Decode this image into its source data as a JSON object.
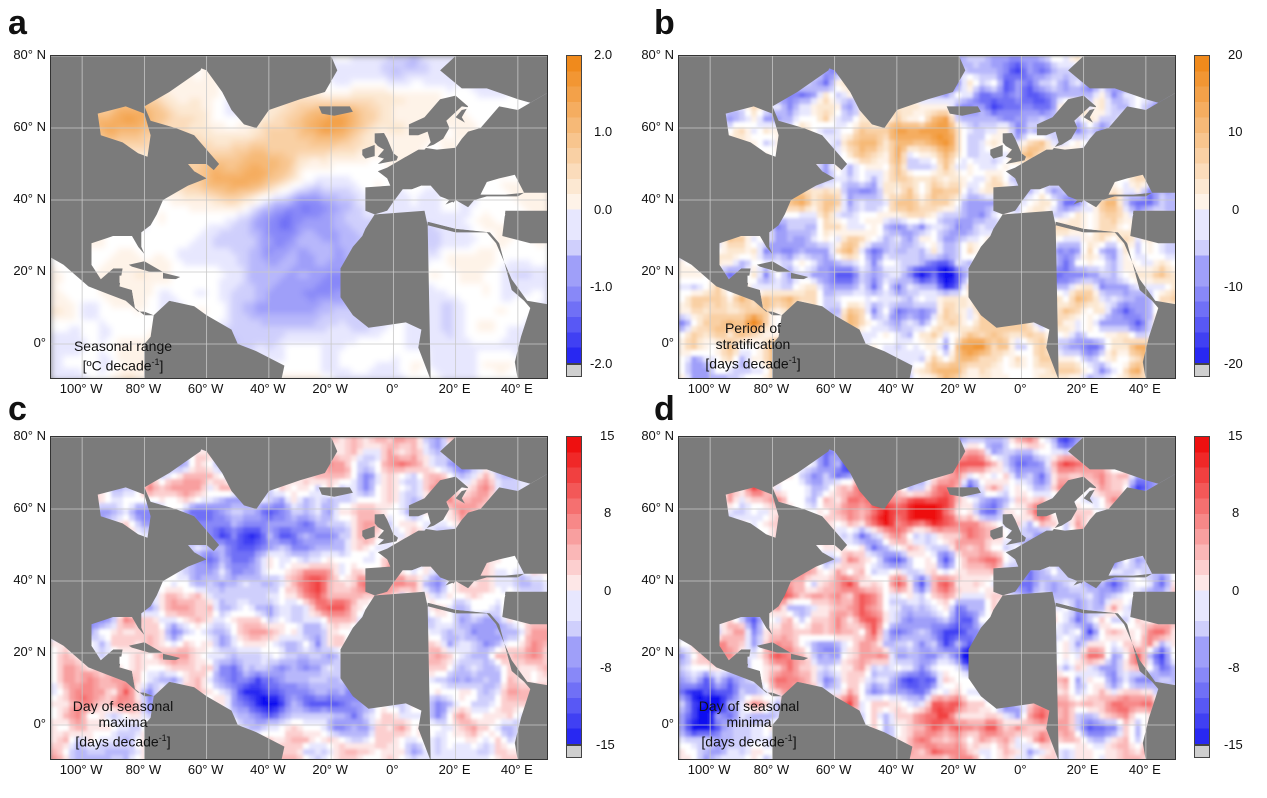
{
  "colors": {
    "land": "#7b7b7b",
    "nan": "#cfcfcf",
    "orange": "#f08a1c",
    "blue": "#1010f0",
    "red": "#ee1010",
    "white": "#ffffff"
  },
  "axes": {
    "y_ticks": [
      "80° N",
      "60° N",
      "40° N",
      "20° N",
      "0°"
    ],
    "x_ticks": [
      "100° W",
      "80° W",
      "60° W",
      "40° W",
      "20° W",
      "0°",
      "20° E",
      "40° E"
    ]
  },
  "panels": [
    {
      "letter": "a",
      "label_lines": [
        "Seasonal range",
        "[ºC decade",
        "]"
      ],
      "label_sup": "-1",
      "colorbar": {
        "colors": [
          "orange",
          "blue"
        ],
        "ticks": [
          "2.0",
          "1.0",
          "0.0",
          "-1.0",
          "-2.0"
        ]
      }
    },
    {
      "letter": "b",
      "label_lines": [
        "Period of",
        "stratification",
        "[days decade",
        "]"
      ],
      "label_sup": "-1",
      "colorbar": {
        "colors": [
          "orange",
          "blue"
        ],
        "ticks": [
          "20",
          "10",
          "0",
          "-10",
          "-20"
        ]
      }
    },
    {
      "letter": "c",
      "label_lines": [
        "Day of seasonal",
        "maxima",
        "[days decade",
        "]"
      ],
      "label_sup": "-1",
      "colorbar": {
        "colors": [
          "red",
          "blue"
        ],
        "ticks": [
          "15",
          "8",
          "0",
          "-8",
          "-15"
        ]
      }
    },
    {
      "letter": "d",
      "label_lines": [
        "Day of seasonal",
        "minima",
        "[days decade",
        "]"
      ],
      "label_sup": "-1",
      "colorbar": {
        "colors": [
          "red",
          "blue"
        ],
        "ticks": [
          "15",
          "8",
          "0",
          "-8",
          "-15"
        ]
      }
    }
  ]
}
